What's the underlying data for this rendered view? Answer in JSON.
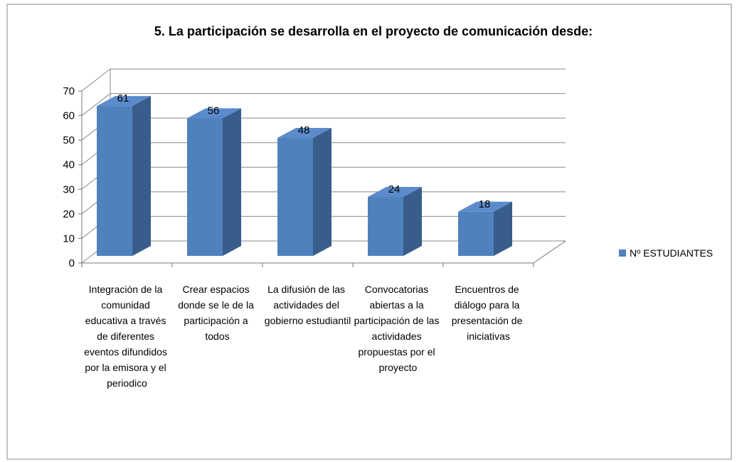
{
  "chart_data": {
    "type": "bar3d",
    "title": "5. La participación se desarrolla en el proyecto de comunicación desde:",
    "categories": [
      "Integración de la comunidad educativa a través de diferentes eventos difundidos por la emisora y el periodico",
      "Crear espacios donde se le de la participación a todos",
      "La difusión de las actividades del gobierno estudiantil",
      "Convocatorias abiertas a la participación de las actividades propuestas por el proyecto",
      "Encuentros de diálogo para la presentación de iniciativas"
    ],
    "series": [
      {
        "name": "Nº ESTUDIANTES",
        "color": "#4f81bd",
        "values": [
          61,
          56,
          48,
          24,
          18
        ]
      }
    ],
    "ylim": [
      0,
      70
    ],
    "yticks": [
      0,
      10,
      20,
      30,
      40,
      50,
      60,
      70
    ],
    "grid": true,
    "legend": "right"
  }
}
